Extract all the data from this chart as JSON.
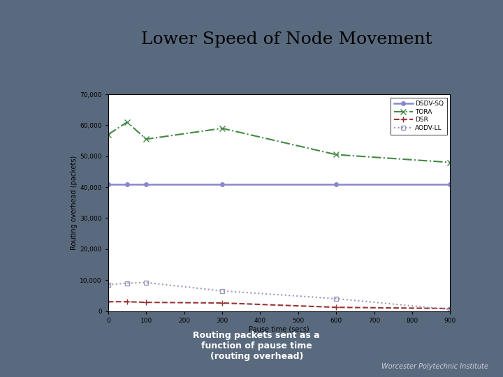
{
  "title": "Lower Speed of Node Movement",
  "xlabel": "Pause time (secs)",
  "ylabel": "Routing overhead (packets)",
  "bg_color": "#5a6a7e",
  "header_color": "#ffffff",
  "plot_bg": "#ffffff",
  "red_bar_color": "#aa2222",
  "gold_bar_color": "#cc8800",
  "x_ticks": [
    0,
    100,
    200,
    300,
    400,
    500,
    600,
    700,
    800,
    900
  ],
  "ylim": [
    0,
    70000
  ],
  "xlim": [
    0,
    900
  ],
  "yticks": [
    0,
    10000,
    20000,
    30000,
    40000,
    50000,
    60000,
    70000
  ],
  "series": {
    "DSDV-SQ": {
      "x": [
        0,
        50,
        100,
        300,
        600,
        900
      ],
      "y": [
        41000,
        41000,
        41000,
        41000,
        41000,
        41000
      ],
      "color": "#8888cc",
      "linestyle": "-",
      "marker": "o",
      "markersize": 4,
      "linewidth": 1.8,
      "markerfacecolor": "#8888cc"
    },
    "TORA": {
      "x": [
        0,
        50,
        100,
        300,
        600,
        900
      ],
      "y": [
        57000,
        61000,
        55500,
        59000,
        50500,
        48000
      ],
      "color": "#448844",
      "linestyle": "-.",
      "marker": "x",
      "markersize": 6,
      "linewidth": 1.5,
      "markerfacecolor": "#448844"
    },
    "DSR": {
      "x": [
        0,
        50,
        100,
        300,
        600,
        900
      ],
      "y": [
        3000,
        3000,
        2800,
        2600,
        1200,
        800
      ],
      "color": "#993333",
      "linestyle": "--",
      "marker": "+",
      "markersize": 6,
      "linewidth": 1.5,
      "markerfacecolor": "#993333"
    },
    "AODV-LL": {
      "x": [
        0,
        50,
        100,
        300,
        600,
        900
      ],
      "y": [
        8500,
        9000,
        9200,
        6500,
        4000,
        500
      ],
      "color": "#9999bb",
      "linestyle": ":",
      "marker": "s",
      "markersize": 4,
      "linewidth": 1.5,
      "markerfacecolor": "none"
    }
  },
  "subtitle_line1": "Routing packets sent as a",
  "subtitle_line2": "function of pause time",
  "subtitle_line3": "(routing overhead)",
  "footer": "Worcester Polytechnic Institute"
}
